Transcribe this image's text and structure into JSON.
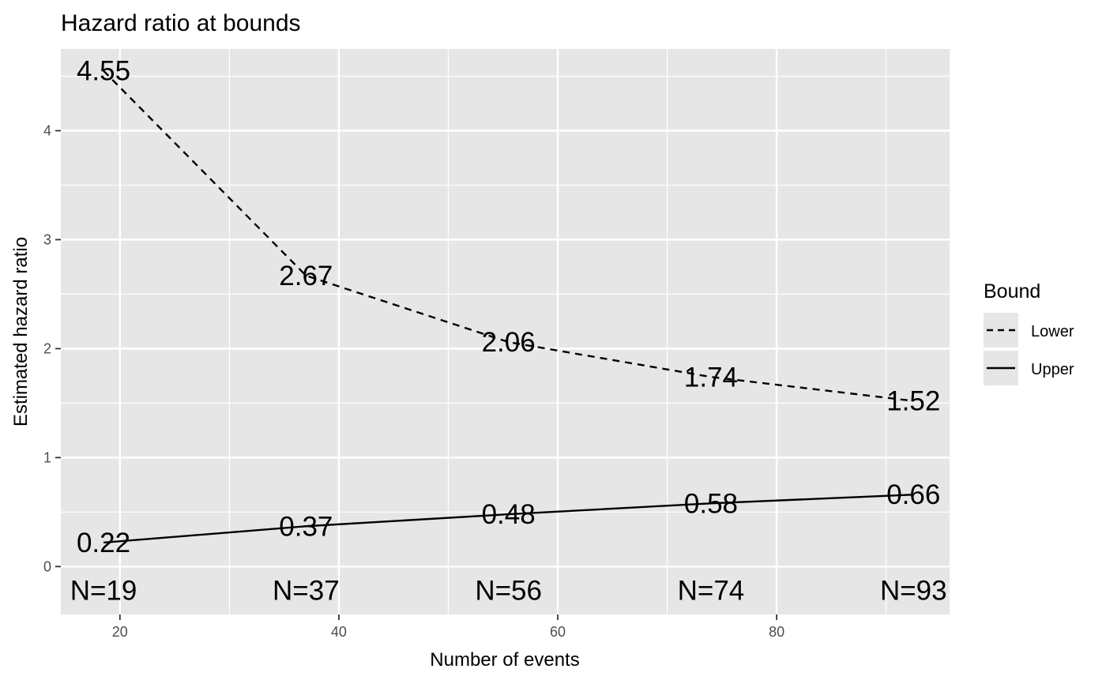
{
  "chart_data": {
    "type": "line",
    "title": "Hazard ratio at bounds",
    "xlabel": "Number of events",
    "ylabel": "Estimated hazard ratio",
    "xlim": [
      14.6,
      95.8
    ],
    "ylim": [
      -0.44,
      4.75
    ],
    "x_ticks": [
      20,
      40,
      60,
      80
    ],
    "y_ticks": [
      0,
      1,
      2,
      3,
      4
    ],
    "x_tick_labels": [
      "20",
      "40",
      "60",
      "80"
    ],
    "y_tick_labels": [
      "0",
      "1",
      "2",
      "3",
      "4"
    ],
    "grid": true,
    "x": [
      18.5,
      37,
      55.5,
      74,
      92.5
    ],
    "series": [
      {
        "name": "Lower",
        "linetype": "dashed",
        "values": [
          4.55,
          2.67,
          2.06,
          1.74,
          1.52
        ],
        "labels": [
          "4.55",
          "2.67",
          "2.06",
          "1.74",
          "1.52"
        ]
      },
      {
        "name": "Upper",
        "linetype": "solid",
        "values": [
          0.22,
          0.37,
          0.48,
          0.58,
          0.66
        ],
        "labels": [
          "0.22",
          "0.37",
          "0.48",
          "0.58",
          "0.66"
        ]
      }
    ],
    "n_labels": [
      "N=19",
      "N=37",
      "N=56",
      "N=74",
      "N=93"
    ],
    "legend": {
      "title": "Bound",
      "position": "right",
      "entries": [
        "Lower",
        "Upper"
      ]
    },
    "colors": {
      "panel": "#e6e6e6",
      "grid": "#ffffff",
      "line": "#000000"
    }
  }
}
